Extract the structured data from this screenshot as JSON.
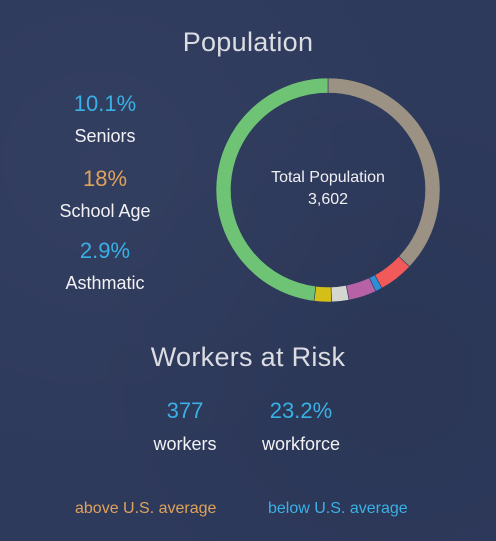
{
  "population": {
    "title": "Population",
    "stats": [
      {
        "value": "10.1%",
        "label": "Seniors",
        "tone": "below"
      },
      {
        "value": "18%",
        "label": "School Age",
        "tone": "above"
      },
      {
        "value": "2.9%",
        "label": "Asthmatic",
        "tone": "below"
      }
    ],
    "center_label": "Total Population",
    "center_value": "3,602"
  },
  "workers": {
    "title": "Workers at Risk",
    "count_value": "377",
    "count_label": "workers",
    "share_value": "23.2%",
    "share_label": "workforce"
  },
  "legend": {
    "above": "above U.S. average",
    "below": "below U.S. average"
  },
  "colors": {
    "above": "#e0a25a",
    "below": "#39b1e6",
    "background": "#2e3a5c"
  },
  "chart_data": {
    "type": "pie",
    "title": "",
    "center_label": "Total Population",
    "center_value": 3602,
    "slices": [
      {
        "value": 37.0,
        "color": "#9b9284"
      },
      {
        "value": 5.0,
        "color": "#f25a5a"
      },
      {
        "value": 1.0,
        "color": "#2c8fd8"
      },
      {
        "value": 4.0,
        "color": "#b761a7"
      },
      {
        "value": 2.5,
        "color": "#d6d6d0"
      },
      {
        "value": 2.5,
        "color": "#d3bf16"
      },
      {
        "value": 48.0,
        "color": "#6ec474"
      }
    ],
    "legend": "none"
  }
}
